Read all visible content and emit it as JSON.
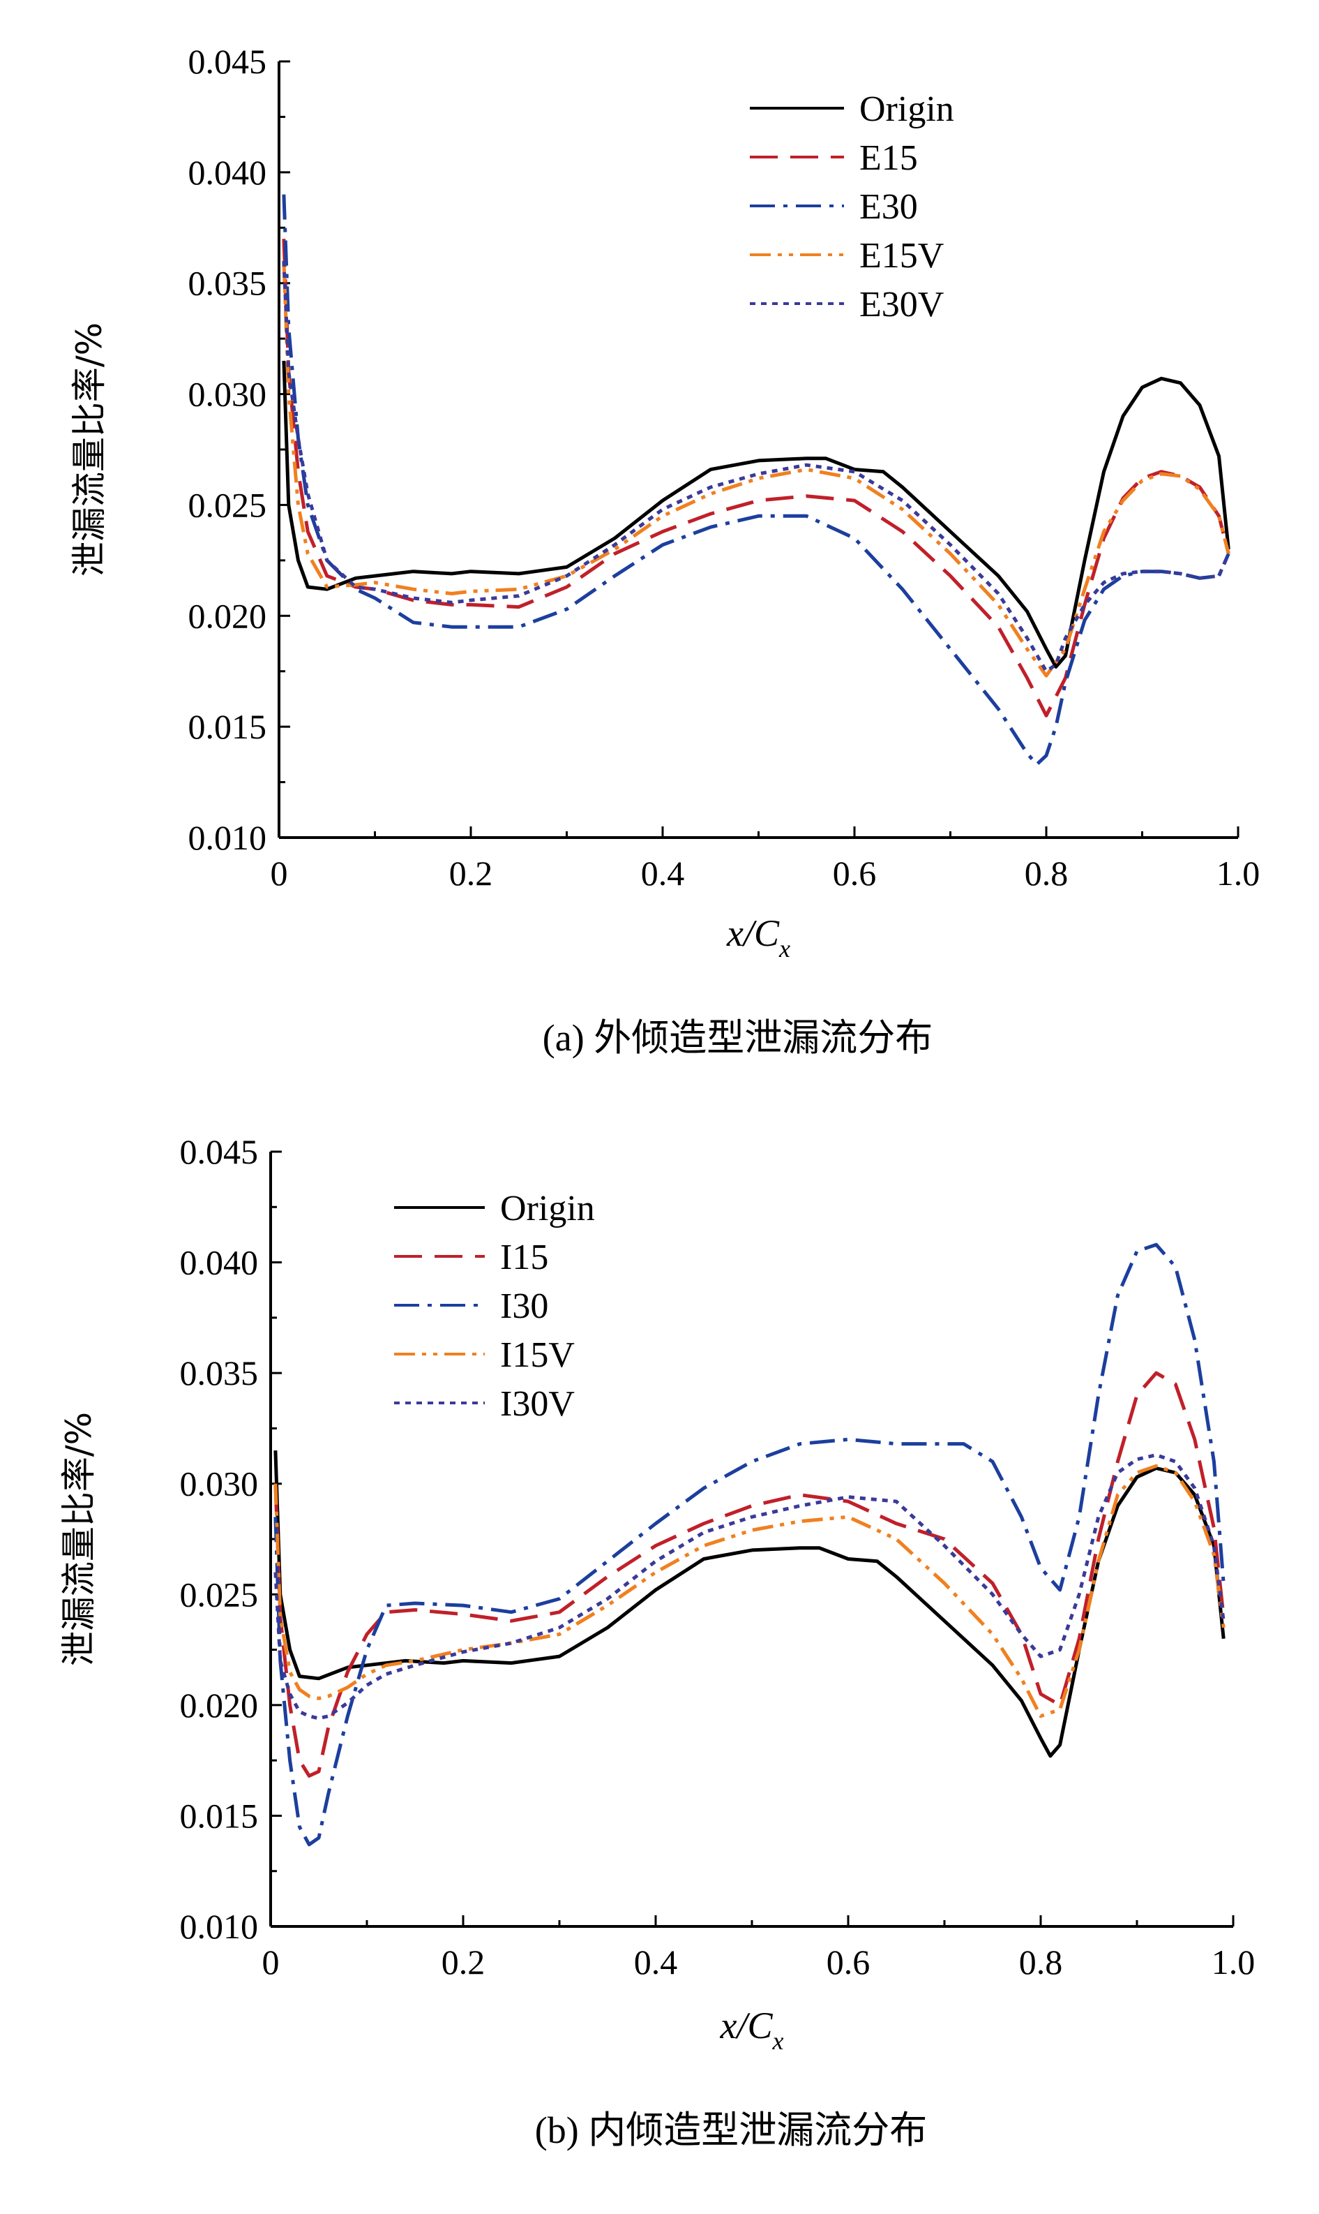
{
  "chart_data": [
    {
      "type": "line",
      "caption": "(a) 外倾造型泄漏流分布",
      "xlabel_main": "x/C",
      "xlabel_sub": "x",
      "ylabel": "泄漏流量比率/%",
      "xlim": [
        0,
        1.0
      ],
      "ylim": [
        0.01,
        0.045
      ],
      "xticks": [
        "0",
        "0.2",
        "0.4",
        "0.6",
        "0.8",
        "1.0"
      ],
      "yticks": [
        "0.010",
        "0.015",
        "0.020",
        "0.025",
        "0.030",
        "0.035",
        "0.040",
        "0.045"
      ],
      "legend_position": "top-right",
      "grid": false,
      "series": [
        {
          "name": "Origin",
          "color": "#000000",
          "dash": "solid",
          "x": [
            0.005,
            0.01,
            0.02,
            0.03,
            0.05,
            0.08,
            0.1,
            0.14,
            0.18,
            0.2,
            0.25,
            0.3,
            0.35,
            0.4,
            0.45,
            0.5,
            0.55,
            0.57,
            0.6,
            0.63,
            0.65,
            0.7,
            0.75,
            0.78,
            0.8,
            0.81,
            0.82,
            0.84,
            0.86,
            0.88,
            0.9,
            0.92,
            0.94,
            0.96,
            0.98,
            0.99
          ],
          "y": [
            0.0315,
            0.025,
            0.0225,
            0.0213,
            0.0212,
            0.0217,
            0.0218,
            0.022,
            0.0219,
            0.022,
            0.0219,
            0.0222,
            0.0235,
            0.0252,
            0.0266,
            0.027,
            0.0271,
            0.0271,
            0.0266,
            0.0265,
            0.0258,
            0.0238,
            0.0218,
            0.0202,
            0.0185,
            0.0177,
            0.0182,
            0.0225,
            0.0265,
            0.029,
            0.0303,
            0.0307,
            0.0305,
            0.0295,
            0.0272,
            0.023
          ]
        },
        {
          "name": "E15",
          "color": "#c0202a",
          "dash": "long-dash",
          "x": [
            0.005,
            0.01,
            0.02,
            0.03,
            0.05,
            0.08,
            0.1,
            0.14,
            0.18,
            0.2,
            0.25,
            0.3,
            0.35,
            0.4,
            0.45,
            0.5,
            0.55,
            0.6,
            0.65,
            0.7,
            0.75,
            0.78,
            0.8,
            0.82,
            0.84,
            0.86,
            0.88,
            0.9,
            0.92,
            0.94,
            0.96,
            0.98,
            0.99
          ],
          "y": [
            0.037,
            0.031,
            0.0265,
            0.0238,
            0.0218,
            0.0213,
            0.0212,
            0.0207,
            0.0205,
            0.0205,
            0.0204,
            0.0213,
            0.0228,
            0.0238,
            0.0246,
            0.0252,
            0.0254,
            0.0252,
            0.0238,
            0.0218,
            0.0195,
            0.0172,
            0.0155,
            0.0172,
            0.0205,
            0.0235,
            0.0253,
            0.0262,
            0.0265,
            0.0263,
            0.0258,
            0.0245,
            0.0228
          ]
        },
        {
          "name": "E30",
          "color": "#1c3f9e",
          "dash": "dash-dot",
          "x": [
            0.005,
            0.01,
            0.02,
            0.03,
            0.05,
            0.08,
            0.1,
            0.14,
            0.18,
            0.2,
            0.25,
            0.3,
            0.35,
            0.4,
            0.45,
            0.5,
            0.55,
            0.6,
            0.65,
            0.7,
            0.75,
            0.78,
            0.79,
            0.8,
            0.81,
            0.82,
            0.84,
            0.86,
            0.88,
            0.9,
            0.92,
            0.94,
            0.96,
            0.98,
            0.99
          ],
          "y": [
            0.039,
            0.033,
            0.028,
            0.025,
            0.0225,
            0.0212,
            0.0208,
            0.0197,
            0.0195,
            0.0195,
            0.0195,
            0.0203,
            0.0218,
            0.0232,
            0.024,
            0.0245,
            0.0245,
            0.0235,
            0.0212,
            0.0185,
            0.0158,
            0.0138,
            0.0133,
            0.0137,
            0.015,
            0.017,
            0.0198,
            0.0212,
            0.0218,
            0.022,
            0.022,
            0.0219,
            0.0217,
            0.0218,
            0.0228
          ]
        },
        {
          "name": "E15V",
          "color": "#f08020",
          "dash": "dash-dot-dot",
          "x": [
            0.005,
            0.01,
            0.02,
            0.03,
            0.05,
            0.08,
            0.1,
            0.14,
            0.18,
            0.2,
            0.25,
            0.3,
            0.35,
            0.4,
            0.45,
            0.5,
            0.55,
            0.6,
            0.65,
            0.7,
            0.75,
            0.78,
            0.8,
            0.82,
            0.84,
            0.86,
            0.88,
            0.9,
            0.92,
            0.94,
            0.96,
            0.98,
            0.99
          ],
          "y": [
            0.036,
            0.03,
            0.025,
            0.0228,
            0.0213,
            0.0214,
            0.0215,
            0.0212,
            0.021,
            0.0211,
            0.0212,
            0.0218,
            0.023,
            0.0245,
            0.0255,
            0.0262,
            0.0266,
            0.0262,
            0.0248,
            0.0228,
            0.0205,
            0.0185,
            0.0173,
            0.0185,
            0.0212,
            0.0238,
            0.0252,
            0.0261,
            0.0264,
            0.0263,
            0.0257,
            0.0245,
            0.0228
          ]
        },
        {
          "name": "E30V",
          "color": "#3a3a9a",
          "dash": "dotted",
          "x": [
            0.005,
            0.01,
            0.02,
            0.03,
            0.05,
            0.08,
            0.1,
            0.14,
            0.18,
            0.2,
            0.25,
            0.3,
            0.35,
            0.4,
            0.45,
            0.5,
            0.55,
            0.6,
            0.65,
            0.7,
            0.75,
            0.78,
            0.8,
            0.81,
            0.82,
            0.84,
            0.86,
            0.88,
            0.9,
            0.92,
            0.94,
            0.96,
            0.98,
            0.99
          ],
          "y": [
            0.036,
            0.031,
            0.028,
            0.0255,
            0.0225,
            0.0213,
            0.0212,
            0.0208,
            0.0206,
            0.0207,
            0.0209,
            0.0218,
            0.0232,
            0.0248,
            0.0258,
            0.0264,
            0.0268,
            0.0265,
            0.0252,
            0.0232,
            0.021,
            0.019,
            0.0175,
            0.0178,
            0.019,
            0.0205,
            0.0215,
            0.0219,
            0.022,
            0.022,
            0.0219,
            0.0217,
            0.0218,
            0.0228
          ]
        }
      ]
    },
    {
      "type": "line",
      "caption": "(b) 内倾造型泄漏流分布",
      "xlabel_main": "x/C",
      "xlabel_sub": "x",
      "ylabel": "泄漏流量比率/%",
      "xlim": [
        0,
        1.0
      ],
      "ylim": [
        0.01,
        0.045
      ],
      "xticks": [
        "0",
        "0.2",
        "0.4",
        "0.6",
        "0.8",
        "1.0"
      ],
      "yticks": [
        "0.010",
        "0.015",
        "0.020",
        "0.025",
        "0.030",
        "0.035",
        "0.040",
        "0.045"
      ],
      "legend_position": "top-left",
      "grid": false,
      "series": [
        {
          "name": "Origin",
          "color": "#000000",
          "dash": "solid",
          "x": [
            0.005,
            0.01,
            0.02,
            0.03,
            0.05,
            0.08,
            0.1,
            0.14,
            0.18,
            0.2,
            0.25,
            0.3,
            0.35,
            0.4,
            0.45,
            0.5,
            0.55,
            0.57,
            0.6,
            0.63,
            0.65,
            0.7,
            0.75,
            0.78,
            0.8,
            0.81,
            0.82,
            0.84,
            0.86,
            0.88,
            0.9,
            0.92,
            0.94,
            0.96,
            0.98,
            0.99
          ],
          "y": [
            0.0315,
            0.025,
            0.0225,
            0.0213,
            0.0212,
            0.0217,
            0.0218,
            0.022,
            0.0219,
            0.022,
            0.0219,
            0.0222,
            0.0235,
            0.0252,
            0.0266,
            0.027,
            0.0271,
            0.0271,
            0.0266,
            0.0265,
            0.0258,
            0.0238,
            0.0218,
            0.0202,
            0.0185,
            0.0177,
            0.0182,
            0.0225,
            0.0265,
            0.029,
            0.0303,
            0.0307,
            0.0305,
            0.0295,
            0.0272,
            0.023
          ]
        },
        {
          "name": "I15",
          "color": "#c0202a",
          "dash": "long-dash",
          "x": [
            0.005,
            0.01,
            0.02,
            0.03,
            0.04,
            0.05,
            0.06,
            0.08,
            0.1,
            0.12,
            0.15,
            0.2,
            0.25,
            0.3,
            0.35,
            0.4,
            0.45,
            0.5,
            0.55,
            0.6,
            0.65,
            0.7,
            0.75,
            0.78,
            0.8,
            0.82,
            0.84,
            0.86,
            0.88,
            0.9,
            0.92,
            0.94,
            0.96,
            0.98,
            0.99
          ],
          "y": [
            0.03,
            0.024,
            0.02,
            0.0175,
            0.0168,
            0.017,
            0.019,
            0.0215,
            0.0232,
            0.0242,
            0.0243,
            0.0241,
            0.0238,
            0.0242,
            0.0258,
            0.0272,
            0.0282,
            0.029,
            0.0295,
            0.0292,
            0.0282,
            0.0275,
            0.0255,
            0.0232,
            0.0205,
            0.02,
            0.023,
            0.0275,
            0.031,
            0.034,
            0.035,
            0.0345,
            0.032,
            0.028,
            0.024
          ]
        },
        {
          "name": "I30",
          "color": "#1c3f9e",
          "dash": "dash-dot",
          "x": [
            0.005,
            0.01,
            0.02,
            0.03,
            0.04,
            0.05,
            0.06,
            0.08,
            0.1,
            0.12,
            0.15,
            0.2,
            0.25,
            0.3,
            0.35,
            0.4,
            0.45,
            0.5,
            0.55,
            0.6,
            0.65,
            0.7,
            0.72,
            0.75,
            0.78,
            0.8,
            0.82,
            0.84,
            0.86,
            0.88,
            0.9,
            0.92,
            0.94,
            0.96,
            0.98,
            0.99
          ],
          "y": [
            0.0285,
            0.022,
            0.0175,
            0.0145,
            0.0137,
            0.014,
            0.016,
            0.0195,
            0.0225,
            0.0245,
            0.0246,
            0.0245,
            0.0242,
            0.0248,
            0.0265,
            0.0282,
            0.0298,
            0.031,
            0.0318,
            0.032,
            0.0318,
            0.0318,
            0.0318,
            0.031,
            0.0285,
            0.0262,
            0.0252,
            0.0285,
            0.034,
            0.0385,
            0.0405,
            0.0408,
            0.0398,
            0.0365,
            0.031,
            0.0255
          ]
        },
        {
          "name": "I15V",
          "color": "#f08020",
          "dash": "dash-dot-dot",
          "x": [
            0.005,
            0.01,
            0.02,
            0.03,
            0.04,
            0.05,
            0.06,
            0.08,
            0.1,
            0.12,
            0.15,
            0.2,
            0.25,
            0.3,
            0.35,
            0.4,
            0.45,
            0.5,
            0.55,
            0.6,
            0.65,
            0.7,
            0.75,
            0.78,
            0.8,
            0.82,
            0.84,
            0.86,
            0.88,
            0.9,
            0.92,
            0.94,
            0.96,
            0.98,
            0.99
          ],
          "y": [
            0.03,
            0.024,
            0.0215,
            0.0207,
            0.0204,
            0.0203,
            0.0204,
            0.0208,
            0.0214,
            0.0218,
            0.022,
            0.0225,
            0.0228,
            0.0232,
            0.0245,
            0.026,
            0.0272,
            0.0279,
            0.0283,
            0.0285,
            0.0275,
            0.0255,
            0.0232,
            0.0212,
            0.0195,
            0.0198,
            0.0225,
            0.0265,
            0.0295,
            0.0305,
            0.0308,
            0.0305,
            0.0292,
            0.0268,
            0.0235
          ]
        },
        {
          "name": "I30V",
          "color": "#3a3a9a",
          "dash": "dotted",
          "x": [
            0.005,
            0.01,
            0.02,
            0.03,
            0.04,
            0.05,
            0.06,
            0.08,
            0.1,
            0.12,
            0.15,
            0.2,
            0.25,
            0.3,
            0.35,
            0.4,
            0.45,
            0.5,
            0.55,
            0.6,
            0.65,
            0.7,
            0.75,
            0.78,
            0.8,
            0.82,
            0.84,
            0.86,
            0.88,
            0.9,
            0.92,
            0.94,
            0.96,
            0.98,
            0.99
          ],
          "y": [
            0.026,
            0.022,
            0.0205,
            0.0197,
            0.0195,
            0.0194,
            0.0195,
            0.0201,
            0.0209,
            0.0214,
            0.0218,
            0.0224,
            0.0228,
            0.0235,
            0.0248,
            0.0265,
            0.0278,
            0.0285,
            0.029,
            0.0294,
            0.0292,
            0.0272,
            0.025,
            0.0232,
            0.0222,
            0.0225,
            0.025,
            0.0285,
            0.0305,
            0.0311,
            0.0313,
            0.031,
            0.0298,
            0.0272,
            0.0238
          ]
        }
      ]
    }
  ]
}
